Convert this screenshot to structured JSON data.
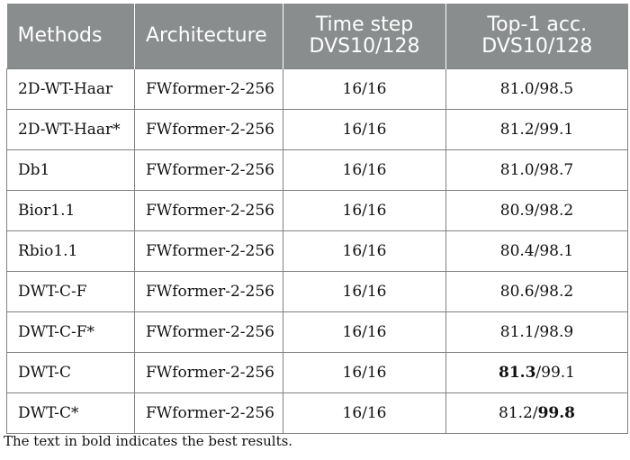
{
  "header": {
    "methods": "Methods",
    "architecture": "Architecture",
    "time_step_line1": "Time step",
    "time_step_line2": "DVS10/128",
    "top1_line1": "Top-1 acc.",
    "top1_line2": "DVS10/128"
  },
  "rows": [
    {
      "method": "2D-WT-Haar",
      "architecture": "FWformer-2-256",
      "time_step": "16/16",
      "acc_a": "81.0",
      "acc_sep": "/",
      "acc_b": "98.5",
      "bold_a": false,
      "bold_b": false
    },
    {
      "method": "2D-WT-Haar*",
      "architecture": "FWformer-2-256",
      "time_step": "16/16",
      "acc_a": "81.2",
      "acc_sep": "/",
      "acc_b": "99.1",
      "bold_a": false,
      "bold_b": false
    },
    {
      "method": "Db1",
      "architecture": "FWformer-2-256",
      "time_step": "16/16",
      "acc_a": "81.0",
      "acc_sep": "/",
      "acc_b": "98.7",
      "bold_a": false,
      "bold_b": false
    },
    {
      "method": "Bior1.1",
      "architecture": "FWformer-2-256",
      "time_step": "16/16",
      "acc_a": "80.9",
      "acc_sep": "/",
      "acc_b": "98.2",
      "bold_a": false,
      "bold_b": false
    },
    {
      "method": "Rbio1.1",
      "architecture": "FWformer-2-256",
      "time_step": "16/16",
      "acc_a": "80.4",
      "acc_sep": "/",
      "acc_b": "98.1",
      "bold_a": false,
      "bold_b": false
    },
    {
      "method": "DWT-C-F",
      "architecture": "FWformer-2-256",
      "time_step": "16/16",
      "acc_a": "80.6",
      "acc_sep": "/",
      "acc_b": "98.2",
      "bold_a": false,
      "bold_b": false
    },
    {
      "method": "DWT-C-F*",
      "architecture": "FWformer-2-256",
      "time_step": "16/16",
      "acc_a": "81.1",
      "acc_sep": "/",
      "acc_b": "98.9",
      "bold_a": false,
      "bold_b": false
    },
    {
      "method": "DWT-C",
      "architecture": "FWformer-2-256",
      "time_step": "16/16",
      "acc_a": "81.3",
      "acc_sep": "/",
      "acc_b": "99.1",
      "bold_a": true,
      "bold_b": false
    },
    {
      "method": "DWT-C*",
      "architecture": "FWformer-2-256",
      "time_step": "16/16",
      "acc_a": "81.2",
      "acc_sep": "/",
      "acc_b": "99.8",
      "bold_a": false,
      "bold_b": true
    }
  ],
  "footnote": "The text in bold indicates the best results."
}
